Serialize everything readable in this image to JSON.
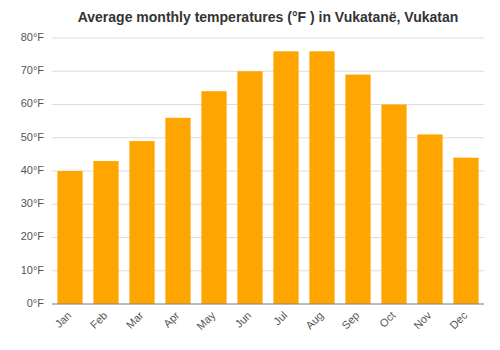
{
  "chart_data": {
    "type": "bar",
    "title": "Average monthly temperatures (°F ) in Vukatanë, Vukatan",
    "categories": [
      "Jan",
      "Feb",
      "Mar",
      "Apr",
      "May",
      "Jun",
      "Jul",
      "Aug",
      "Sep",
      "Oct",
      "Nov",
      "Dec"
    ],
    "values": [
      40.0,
      43.0,
      49.0,
      56.0,
      64.0,
      70.0,
      76.0,
      76.0,
      69.0,
      60.0,
      51.0,
      44.0
    ],
    "color": "#FFA500",
    "ylim": [
      0,
      80
    ],
    "yticks": [
      {
        "value": 0,
        "label": "0°F"
      },
      {
        "value": 10,
        "label": "10°F"
      },
      {
        "value": 20,
        "label": "20°F"
      },
      {
        "value": 30,
        "label": "30°F"
      },
      {
        "value": 40,
        "label": "40°F"
      },
      {
        "value": 50,
        "label": "50°F"
      },
      {
        "value": 60,
        "label": "60°F"
      },
      {
        "value": 70,
        "label": "70°F"
      },
      {
        "value": 80,
        "label": "80°F"
      }
    ],
    "grid": true
  }
}
